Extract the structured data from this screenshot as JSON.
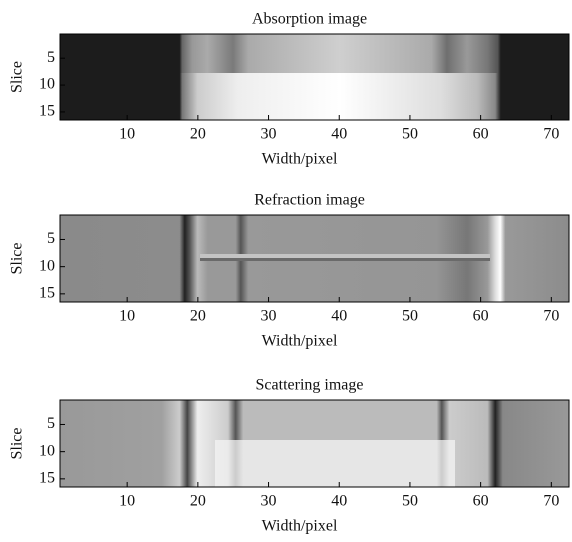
{
  "chart_data": [
    {
      "type": "image",
      "title": "Absorption image",
      "xlabel": "Width/pixel",
      "ylabel": "Slice",
      "xlim": [
        0.5,
        72.5
      ],
      "ylim": [
        0.5,
        16.5
      ],
      "xticks": [
        10,
        20,
        30,
        40,
        50,
        60,
        70
      ],
      "yticks": [
        5,
        10,
        15
      ]
    },
    {
      "type": "image",
      "title": "Refraction image",
      "xlabel": "Width/pixel",
      "ylabel": "Slice",
      "xlim": [
        0.5,
        72.5
      ],
      "ylim": [
        0.5,
        16.5
      ],
      "xticks": [
        10,
        20,
        30,
        40,
        50,
        60,
        70
      ],
      "yticks": [
        5,
        10,
        15
      ]
    },
    {
      "type": "image",
      "title": "Scattering image",
      "xlabel": "Width/pixel",
      "ylabel": "Slice",
      "xlim": [
        0.5,
        72.5
      ],
      "ylim": [
        0.5,
        16.5
      ],
      "xticks": [
        10,
        20,
        30,
        40,
        50,
        60,
        70
      ],
      "yticks": [
        5,
        10,
        15
      ]
    }
  ]
}
